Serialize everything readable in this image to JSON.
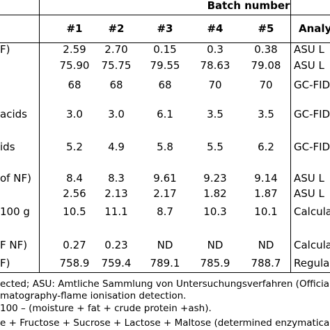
{
  "header": {
    "batch_number": "Batch number",
    "batches": [
      "#1",
      "#2",
      "#3",
      "#4",
      "#5"
    ],
    "analysis": "Analy"
  },
  "rows": [
    {
      "label": "F)",
      "values": [
        "2.59",
        "2.70",
        "0.15",
        "0.3",
        "0.38"
      ],
      "method": "ASU L"
    },
    {
      "label": "",
      "values": [
        "75.90",
        "75.75",
        "79.55",
        "78.63",
        "79.08"
      ],
      "method": "ASU L"
    },
    {
      "label": "",
      "values": [
        "68",
        "68",
        "68",
        "70",
        "70"
      ],
      "method": "GC-FID"
    },
    {
      "label": "acids",
      "values": [
        "3.0",
        "3.0",
        "6.1",
        "3.5",
        "3.5"
      ],
      "method": "GC-FID"
    },
    {
      "label": "ids",
      "values": [
        "5.2",
        "4.9",
        "5.8",
        "5.5",
        "6.2"
      ],
      "method": "GC-FID"
    },
    {
      "label": "of NF)",
      "values": [
        "8.4",
        "8.3",
        "9.61",
        "9.23",
        "9.14"
      ],
      "method": "ASU L"
    },
    {
      "label": "",
      "values": [
        "2.56",
        "2.13",
        "2.17",
        "1.82",
        "1.87"
      ],
      "method": "ASU L"
    },
    {
      "label": "100 g",
      "values": [
        "10.5",
        "11.1",
        "8.7",
        "10.3",
        "10.1"
      ],
      "method": "Calcula"
    },
    {
      "label": "F NF)",
      "values": [
        "0.27",
        "0.23",
        "ND",
        "ND",
        "ND"
      ],
      "method": "Calcula"
    },
    {
      "label": "F)",
      "values": [
        "758.9",
        "759.4",
        "789.1",
        "785.9",
        "788.7"
      ],
      "method": "Regula"
    }
  ],
  "footnotes": [
    "ected; ASU: Amtliche Sammlung von Untersuchungsverfahren (Official C",
    "matography-flame ionisation detection.",
    "100 – (moisture + fat + crude protein +ash).",
    "e + Fructose + Sucrose + Lactose + Maltose (determined enzymaticall"
  ]
}
